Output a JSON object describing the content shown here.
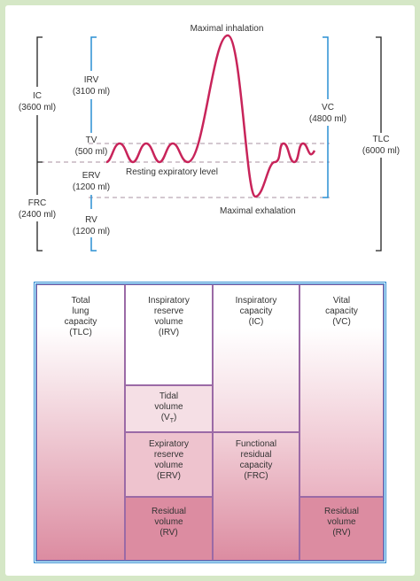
{
  "spirogram": {
    "maximal_inhalation": "Maximal inhalation",
    "maximal_exhalation": "Maximal exhalation",
    "resting_level": "Resting expiratory level",
    "volumes": [
      {
        "name": "IRV",
        "amount": "(3100 ml)"
      },
      {
        "name": "TV",
        "amount": "(500 ml)"
      },
      {
        "name": "ERV",
        "amount": "(1200 ml)"
      },
      {
        "name": "RV",
        "amount": "(1200 ml)"
      }
    ],
    "capacities": [
      {
        "name": "IC",
        "amount": "(3600 ml)"
      },
      {
        "name": "FRC",
        "amount": "(2400 ml)"
      },
      {
        "name": "VC",
        "amount": "(4800 ml)"
      },
      {
        "name": "TLC",
        "amount": "(6000 ml)"
      }
    ]
  },
  "table": {
    "cells": [
      {
        "lines": [
          "Total",
          "lung",
          "capacity",
          "(TLC)"
        ]
      },
      {
        "lines": [
          "Inspiratory",
          "reserve",
          "volume",
          "(IRV)"
        ]
      },
      {
        "lines": [
          "Inspiratory",
          "capacity",
          "(IC)"
        ]
      },
      {
        "lines": [
          "Vital",
          "capacity",
          "(VC)"
        ]
      },
      {
        "lines": [
          "Tidal",
          "volume"
        ],
        "symbol": {
          "text": "(V",
          "subscript": "T",
          "close": ")"
        }
      },
      {
        "lines": [
          "Expiratory",
          "reserve",
          "volume",
          "(ERV)"
        ]
      },
      {
        "lines": [
          "Functional",
          "residual",
          "capacity",
          "(FRC)"
        ]
      },
      {
        "lines": [
          "Residual",
          "volume",
          "(RV)"
        ]
      },
      {
        "lines": [
          "Residual",
          "volume",
          "(RV)"
        ]
      }
    ]
  }
}
